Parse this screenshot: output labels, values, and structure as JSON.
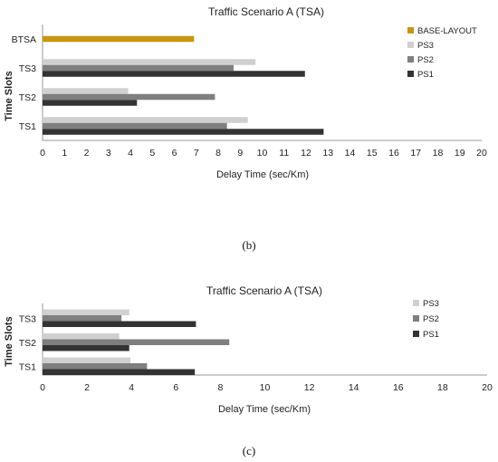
{
  "chart_data": [
    {
      "type": "bar",
      "orientation": "horizontal",
      "title": "Traffic Scenario A (TSA)",
      "xlabel": "Delay Time (sec/Km)",
      "ylabel": "Time Slots",
      "xlim": [
        0,
        20
      ],
      "xticks": [
        0,
        1,
        2,
        3,
        4,
        5,
        6,
        7,
        8,
        9,
        10,
        11,
        12,
        13,
        14,
        15,
        16,
        17,
        18,
        19,
        20
      ],
      "categories": [
        "TS1",
        "TS2",
        "TS3",
        "BTSA"
      ],
      "series": [
        {
          "name": "PS1",
          "color": "#333333",
          "values": [
            12.8,
            4.3,
            11.95,
            null
          ]
        },
        {
          "name": "PS2",
          "color": "#7f7f7f",
          "values": [
            8.4,
            7.85,
            8.7,
            null
          ]
        },
        {
          "name": "PS3",
          "color": "#d0d0d0",
          "values": [
            9.35,
            3.9,
            9.7,
            null
          ]
        },
        {
          "name": "BASE-LAYOUT",
          "color": "#c9960f",
          "values": [
            null,
            null,
            null,
            6.9
          ]
        }
      ],
      "legend": [
        "BASE-LAYOUT",
        "PS3",
        "PS2",
        "PS1"
      ],
      "legend_position": "right",
      "grid": false,
      "caption": "(b)"
    },
    {
      "type": "bar",
      "orientation": "horizontal",
      "title": "Traffic Scenario A (TSA)",
      "xlabel": "Delay Time (sec/Km)",
      "ylabel": "Time Slots",
      "xlim": [
        0,
        20
      ],
      "xticks": [
        0,
        2,
        4,
        6,
        8,
        10,
        12,
        14,
        16,
        18,
        20
      ],
      "categories": [
        "TS1",
        "TS2",
        "TS3"
      ],
      "series": [
        {
          "name": "PS1",
          "color": "#333333",
          "values": [
            6.85,
            3.9,
            6.9
          ]
        },
        {
          "name": "PS2",
          "color": "#7f7f7f",
          "values": [
            4.7,
            8.4,
            3.55
          ]
        },
        {
          "name": "PS3",
          "color": "#d0d0d0",
          "values": [
            3.95,
            3.45,
            3.9
          ]
        }
      ],
      "legend": [
        "PS3",
        "PS2",
        "PS1"
      ],
      "legend_position": "right",
      "grid": false,
      "caption": "(c)"
    }
  ]
}
